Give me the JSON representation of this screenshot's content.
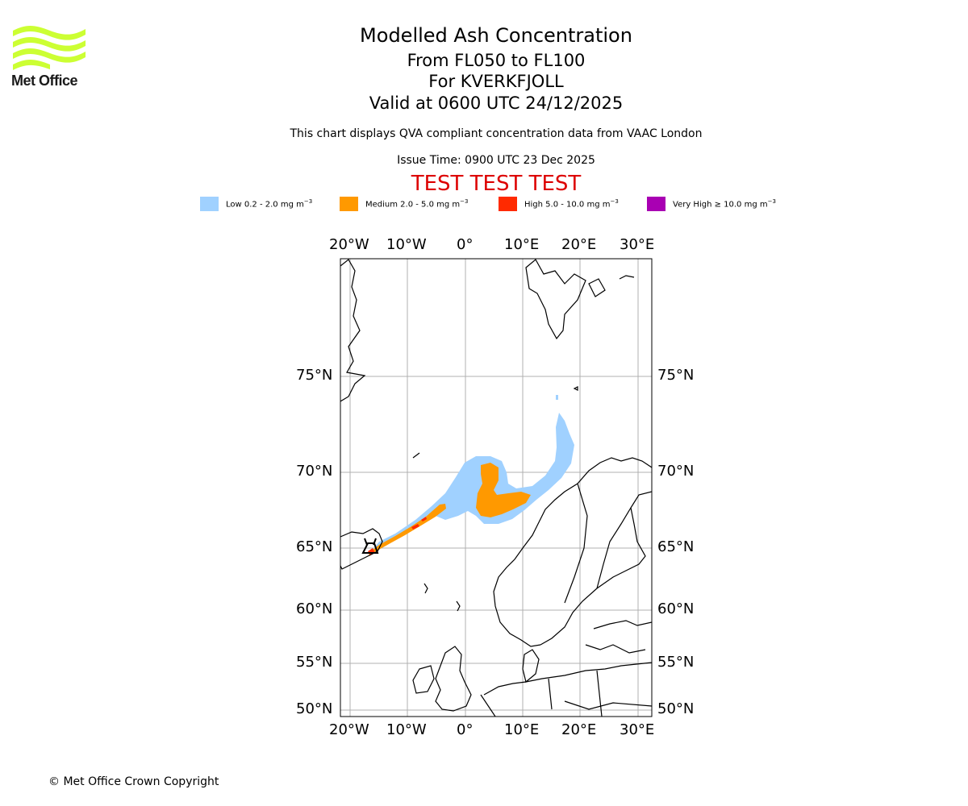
{
  "header": {
    "title": "Modelled Ash Concentration",
    "levels": "From FL050 to FL100",
    "volcano": "For KVERKFJOLL",
    "valid": "Valid at 0600 UTC 24/12/2025",
    "note": "This chart displays QVA compliant concentration data from VAAC London",
    "issue_time": "Issue Time: 0900 UTC 23 Dec 2025",
    "test_banner": "TEST TEST TEST",
    "test_color": "#dd0000"
  },
  "logo": {
    "text": "Met Office",
    "color": "#ccff33"
  },
  "legend": [
    {
      "label": "Low 0.2 - 2.0 mg m",
      "unit_exp": "−3",
      "color": "#a0d1ff"
    },
    {
      "label": "Medium 2.0 - 5.0 mg m",
      "unit_exp": "−3",
      "color": "#ff9900"
    },
    {
      "label": "High 5.0 - 10.0 mg m",
      "unit_exp": "−3",
      "color": "#ff2a00"
    },
    {
      "label": "Very High  ≥  10.0 mg m",
      "unit_exp": "−3",
      "color": "#a900b3"
    }
  ],
  "map": {
    "lon_labels": [
      "20°W",
      "10°W",
      "0°",
      "10°E",
      "20°E",
      "30°E"
    ],
    "lat_labels": [
      "75°N",
      "70°N",
      "65°N",
      "60°N",
      "55°N",
      "50°N"
    ],
    "lon_values": [
      -20,
      -10,
      0,
      10,
      20,
      30
    ],
    "lat_values": [
      75,
      70,
      65,
      60,
      55,
      50
    ]
  },
  "footer": {
    "copyright": "© Met Office Crown Copyright"
  }
}
